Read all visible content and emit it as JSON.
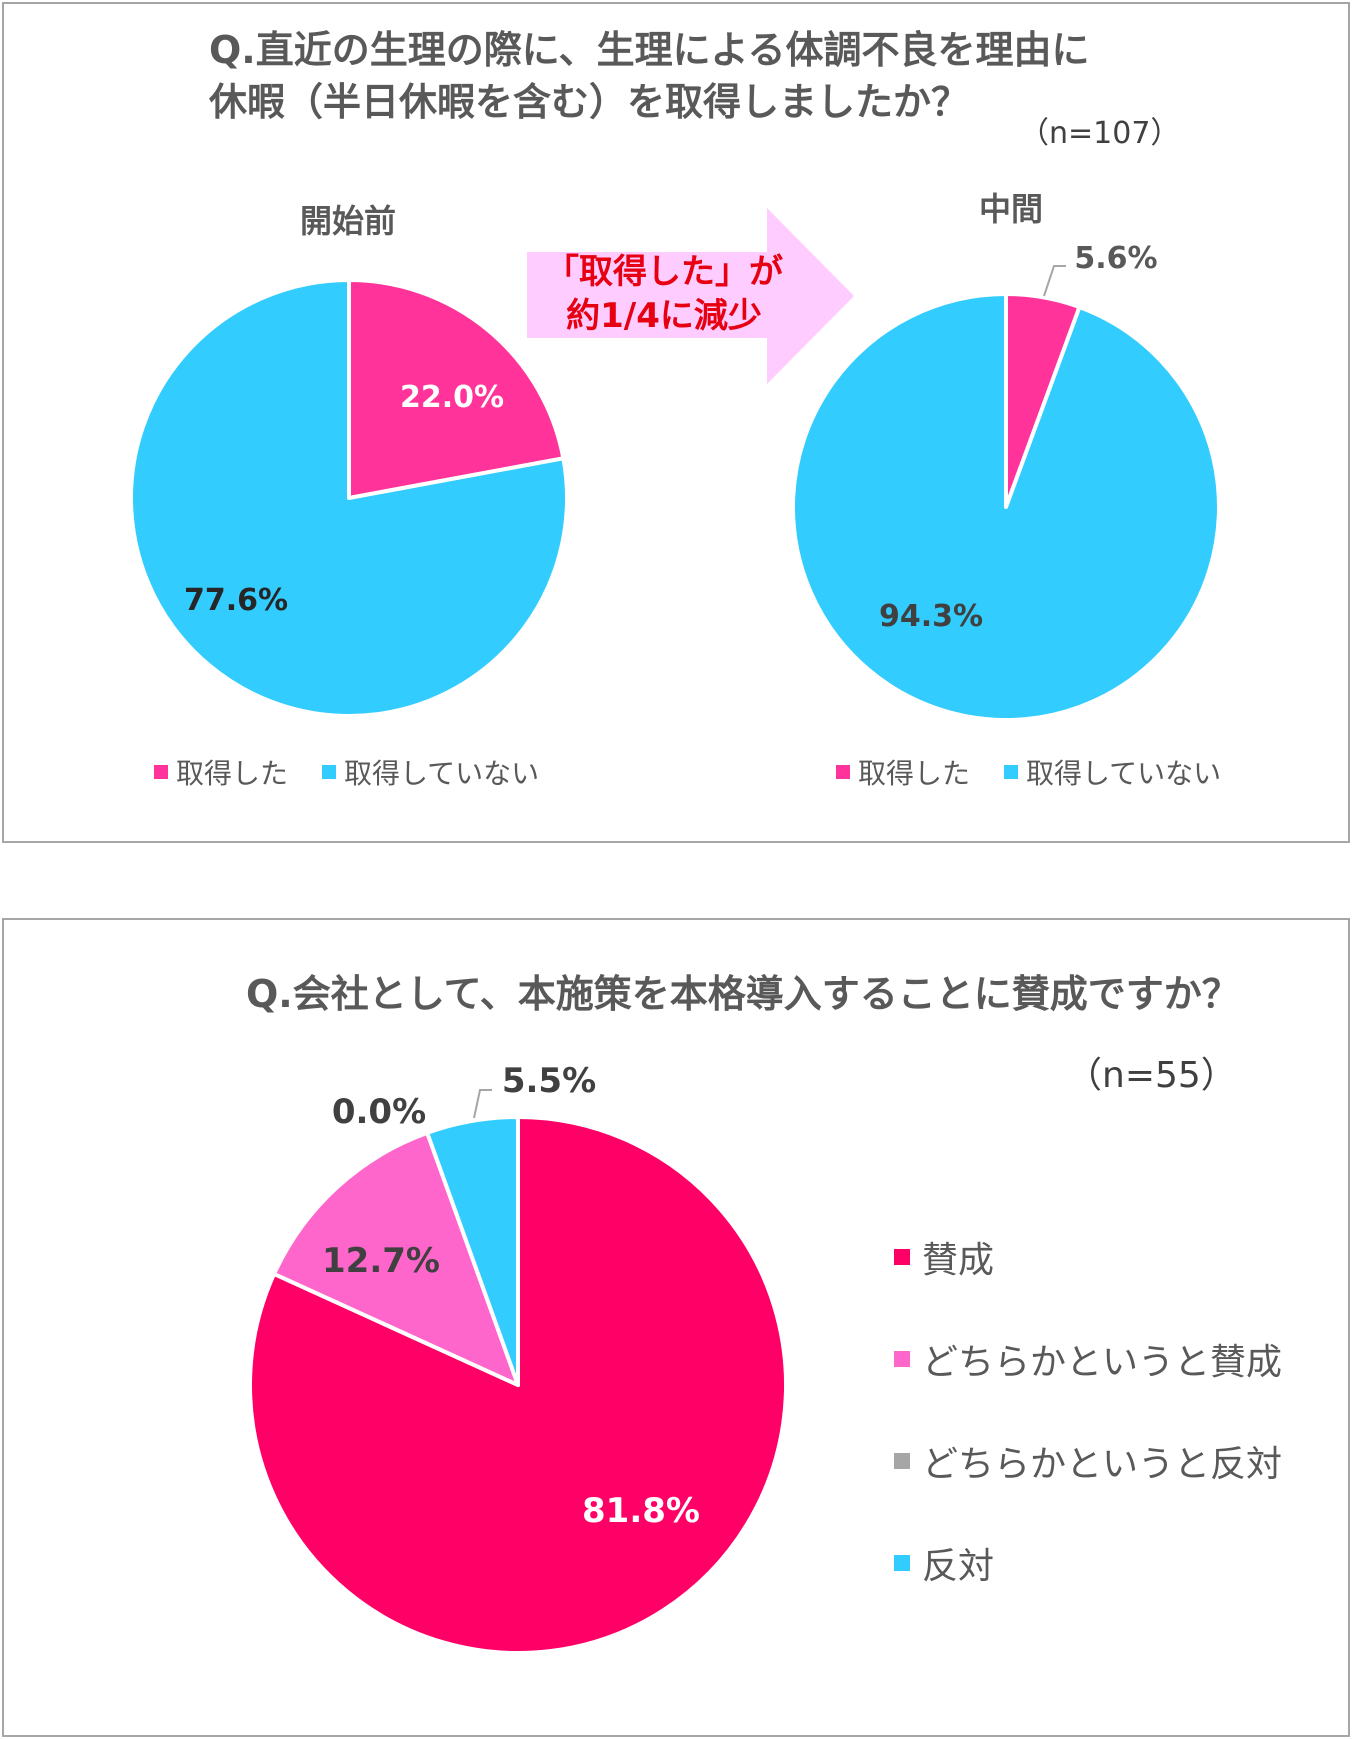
{
  "colors": {
    "pink": "#ff3399",
    "cyan": "#33ccff",
    "crimson": "#ff0066",
    "light_pink": "#ff66cc",
    "gray": "#a6a6a6",
    "arrow": "#ffccff",
    "arrow_text": "#e60012"
  },
  "panel1": {
    "title_line1": "Q.直近の生理の際に、生理による体調不良を理由に",
    "title_line2": "休暇（半日休暇を含む）を取得しましたか？",
    "sample": "（n=107）",
    "arrow_line1": "「取得した」が",
    "arrow_line2": "約1/4に減少",
    "left_title": "開始前",
    "right_title": "中間",
    "legend": [
      {
        "label": "取得した",
        "color": "#ff3399"
      },
      {
        "label": "取得していない",
        "color": "#33ccff"
      }
    ]
  },
  "panel2": {
    "title": "Q.会社として、本施策を本格導入することに賛成ですか？",
    "sample": "（n=55）",
    "legend": [
      {
        "label": "賛成",
        "color": "#ff0066"
      },
      {
        "label": "どちらかというと賛成",
        "color": "#ff66cc"
      },
      {
        "label": "どちらかというと反対",
        "color": "#a6a6a6"
      },
      {
        "label": "反対",
        "color": "#33ccff"
      }
    ]
  },
  "chart_data": [
    {
      "type": "pie",
      "title": "開始前",
      "categories": [
        "取得した",
        "取得していない"
      ],
      "values": [
        22.0,
        77.6
      ],
      "labels": [
        "22.0%",
        "77.6%"
      ],
      "colors": [
        "#ff3399",
        "#33ccff"
      ],
      "legend": "bottom"
    },
    {
      "type": "pie",
      "title": "中間",
      "categories": [
        "取得した",
        "取得していない"
      ],
      "values": [
        5.6,
        94.3
      ],
      "labels": [
        "5.6%",
        "94.3%"
      ],
      "colors": [
        "#ff3399",
        "#33ccff"
      ],
      "legend": "bottom"
    },
    {
      "type": "pie",
      "title": "",
      "categories": [
        "賛成",
        "どちらかというと賛成",
        "どちらかというと反対",
        "反対"
      ],
      "values": [
        81.8,
        12.7,
        0.0,
        5.5
      ],
      "labels": [
        "81.8%",
        "12.7%",
        "0.0%",
        "5.5%"
      ],
      "colors": [
        "#ff0066",
        "#ff66cc",
        "#a6a6a6",
        "#33ccff"
      ],
      "legend": "right"
    }
  ]
}
